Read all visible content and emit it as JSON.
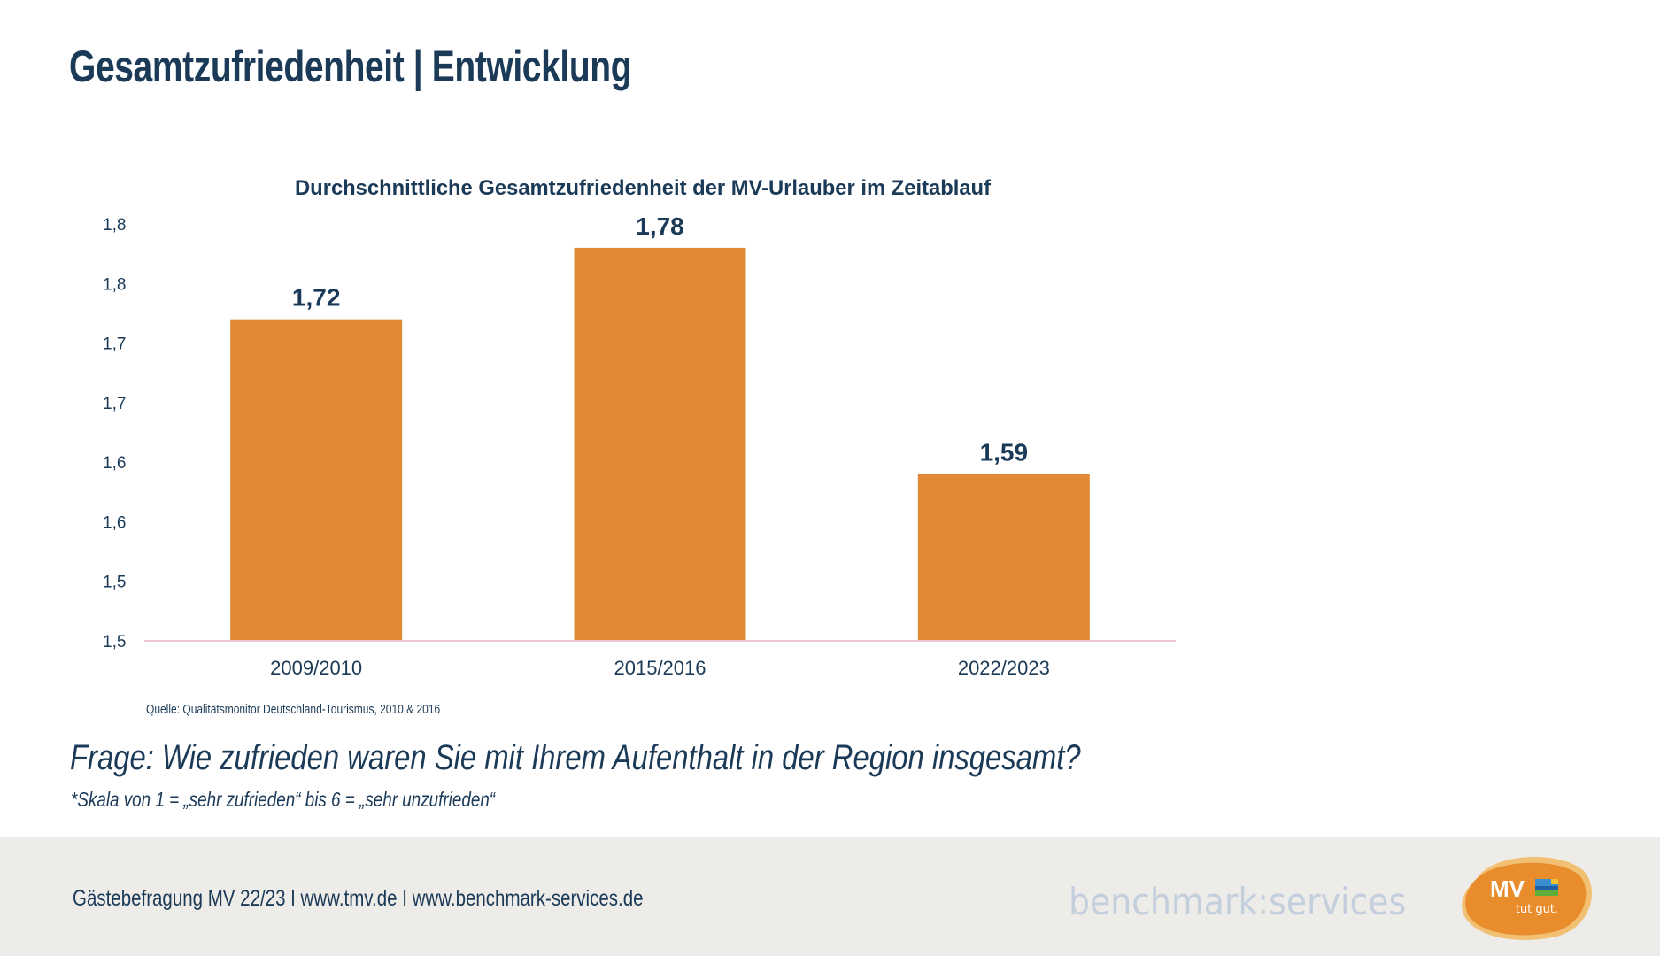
{
  "page": {
    "title": "Gesamtzufriedenheit | Entwicklung"
  },
  "chart_data": {
    "type": "bar",
    "title": "Durchschnittliche Gesamtzufriedenheit der MV-Urlauber im Zeitablauf",
    "categories": [
      "2009/2010",
      "2015/2016",
      "2022/2023"
    ],
    "values": [
      1.72,
      1.78,
      1.59
    ],
    "data_labels": [
      "1,72",
      "1,78",
      "1,59"
    ],
    "xlabel": "",
    "ylabel": "",
    "ylim": [
      1.45,
      1.8
    ],
    "yticks": [
      1.45,
      1.5,
      1.55,
      1.6,
      1.65,
      1.7,
      1.75,
      1.8
    ],
    "ytick_labels": [
      "1,5",
      "1,5",
      "1,6",
      "1,6",
      "1,7",
      "1,7",
      "1,8",
      "1,8"
    ],
    "grid": false,
    "legend": "none",
    "bar_color": "#E08A35",
    "axis_color": "#F2C6D6",
    "text_color": "#1B3A57"
  },
  "source": "Quelle: Qualitätsmonitor Deutschland-Tourismus, 2010 & 2016",
  "question": "Frage: Wie zufrieden waren Sie mit Ihrem Aufenthalt in der Region insgesamt?",
  "scale_note": "*Skala von 1 = „sehr zufrieden“ bis  6 = „sehr unzufrieden“",
  "footer": {
    "text": "Gästebefragung MV 22/23  I  www.tmv.de  I www.benchmark-services.de",
    "brand": "benchmark:services",
    "logo": {
      "main": "MV",
      "tagline": "tut gut.",
      "icon": "landscape-flag-icon",
      "color": "#E88C2C"
    }
  }
}
